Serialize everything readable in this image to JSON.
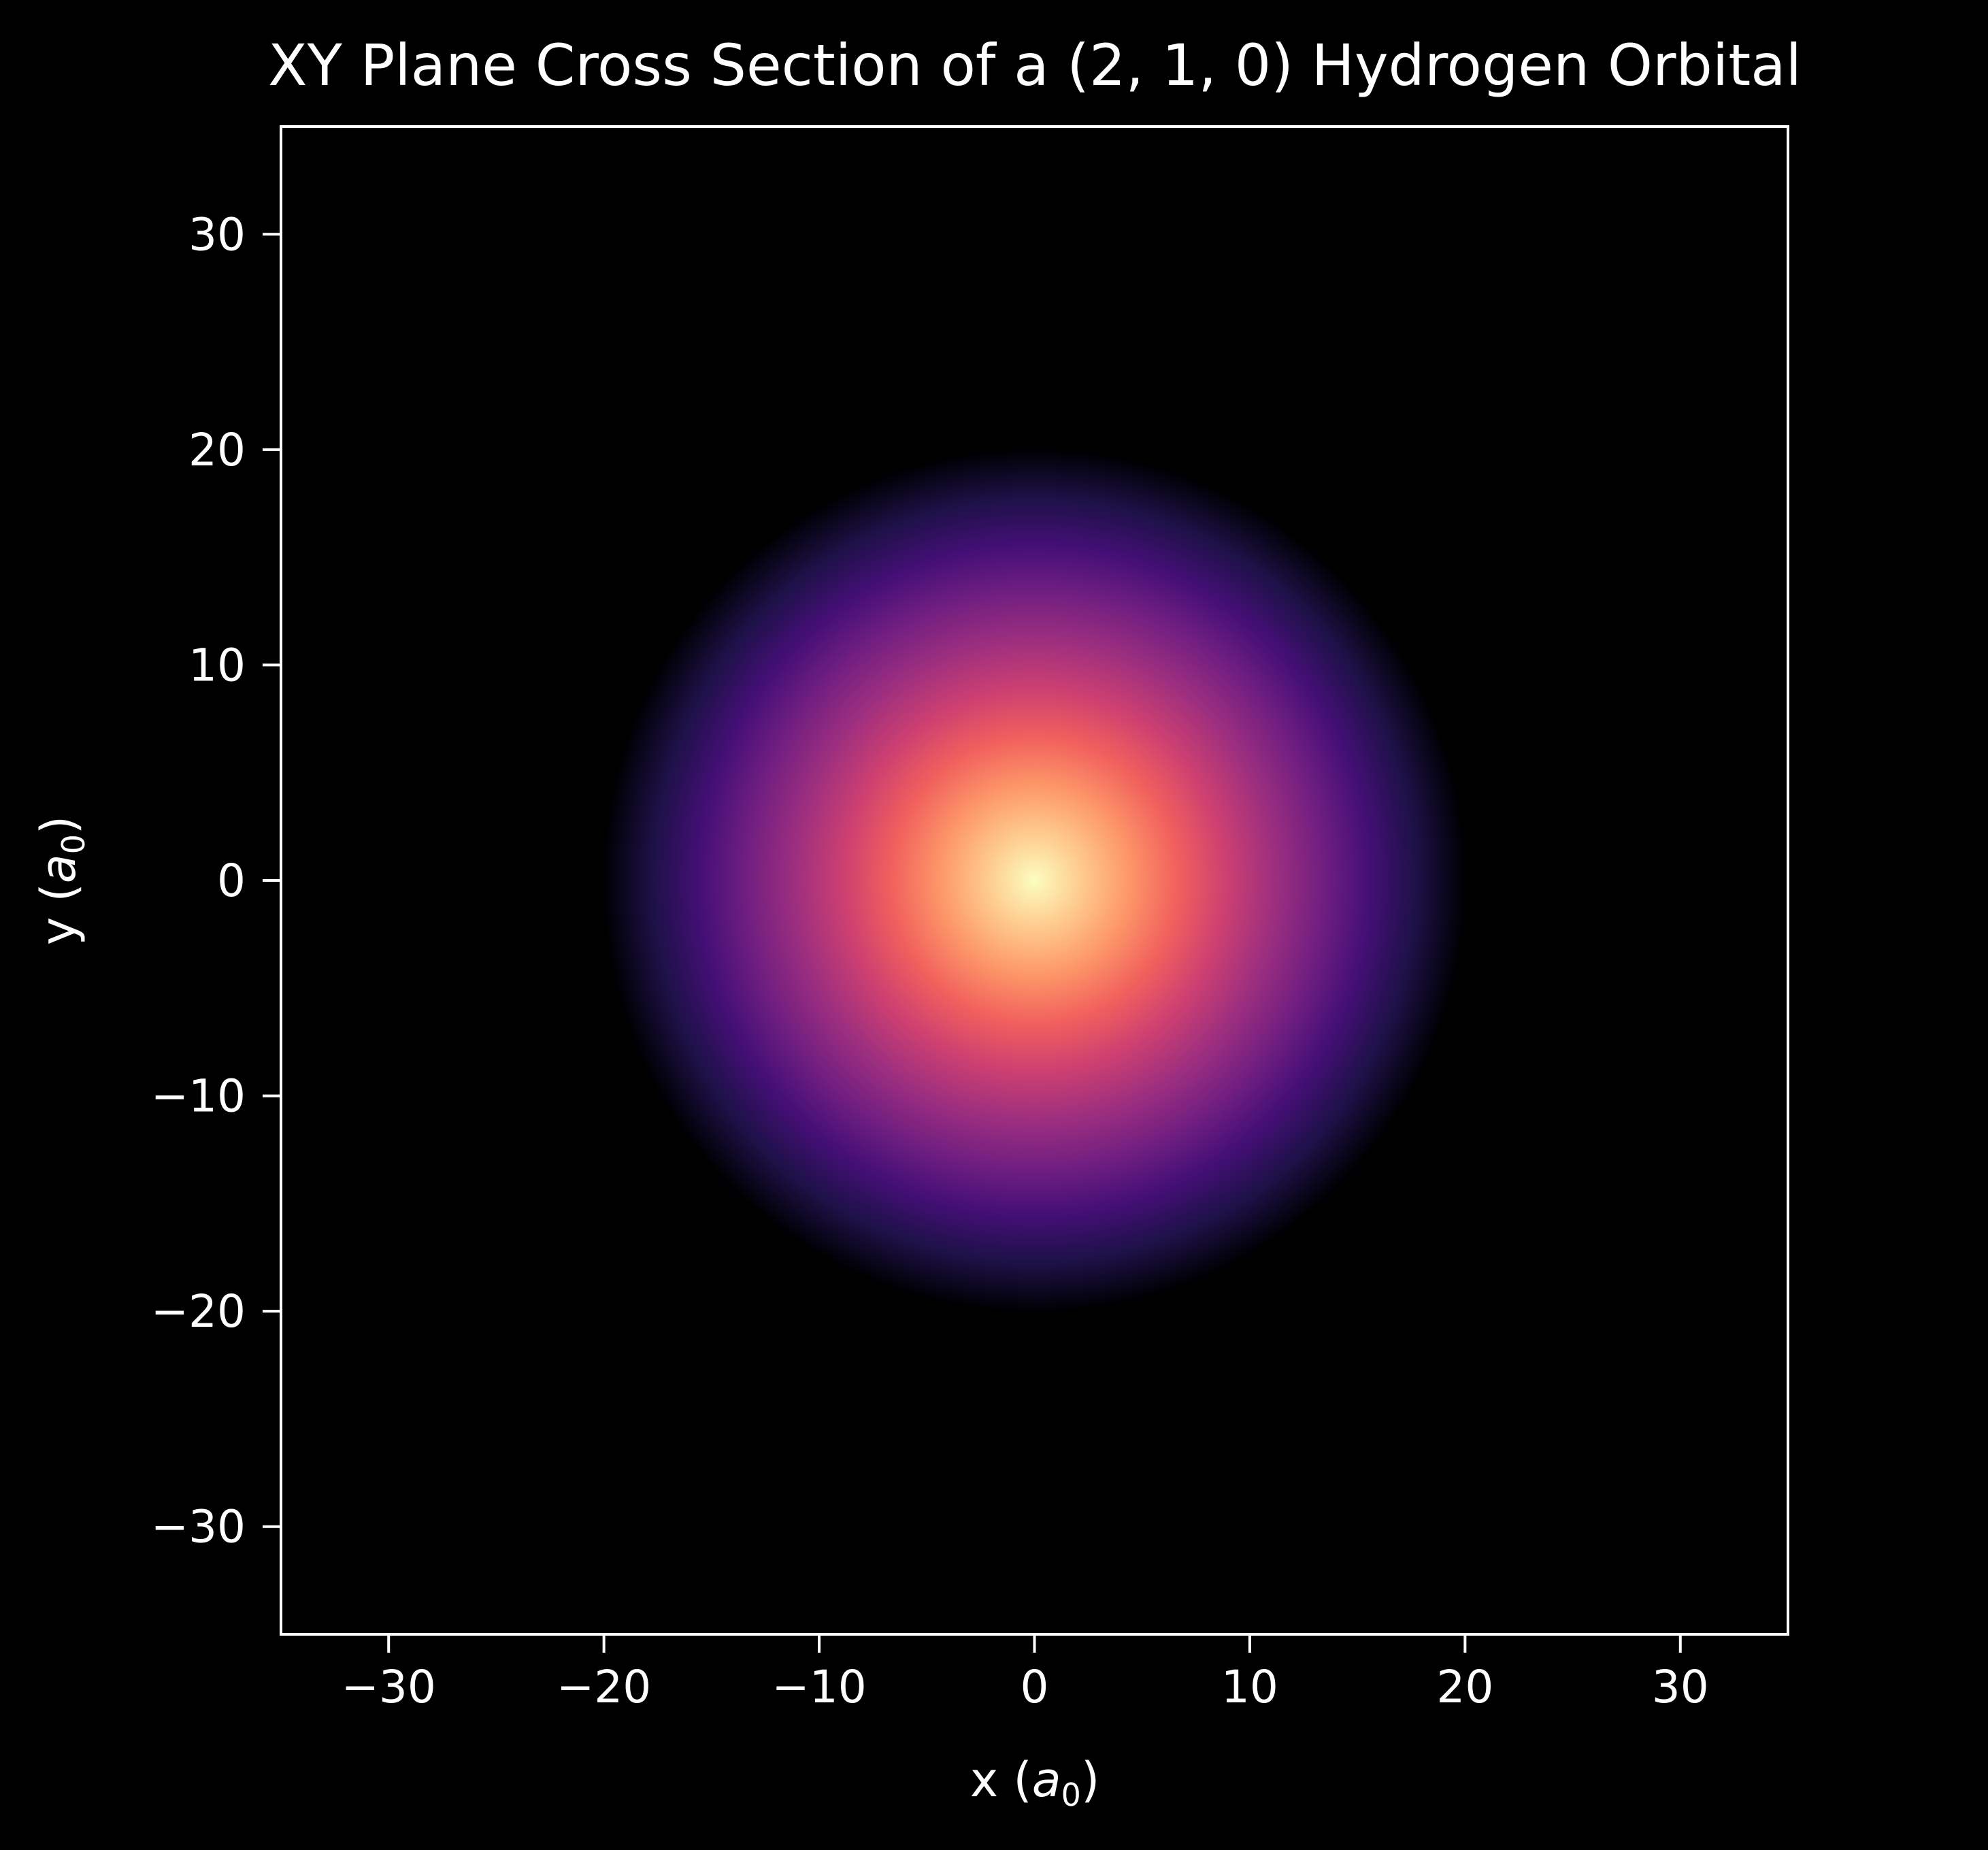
{
  "chart_data": {
    "type": "heatmap",
    "title": "XY Plane Cross Section of a (2, 1, 0) Hydrogen Orbital",
    "xlabel": {
      "base": "x (",
      "var": "a",
      "sub": "0",
      "close": ")"
    },
    "ylabel": {
      "base": "y (",
      "var": "a",
      "sub": "0",
      "close": ")"
    },
    "xlim": [
      -35,
      35
    ],
    "ylim": [
      -35,
      35
    ],
    "xticks": [
      -30,
      -20,
      -10,
      0,
      10,
      20,
      30
    ],
    "yticks": [
      -30,
      -20,
      -10,
      0,
      10,
      20,
      30
    ],
    "xtick_labels": [
      "−30",
      "−20",
      "−10",
      "0",
      "10",
      "20",
      "30"
    ],
    "ytick_labels": [
      "−30",
      "−20",
      "−10",
      "0",
      "10",
      "20",
      "30"
    ],
    "colormap": "magma",
    "center": [
      0,
      0
    ],
    "radius": 20,
    "background": "#000000",
    "colors": {
      "frame": "#ffffff",
      "text": "#ffffff",
      "stops": [
        "#fcfdbf",
        "#feca8d",
        "#fd9668",
        "#f1605d",
        "#cd4071",
        "#9e2f7f",
        "#721f81",
        "#440f76",
        "#1d1147",
        "#000004"
      ]
    },
    "grid": false,
    "legend": "none"
  }
}
